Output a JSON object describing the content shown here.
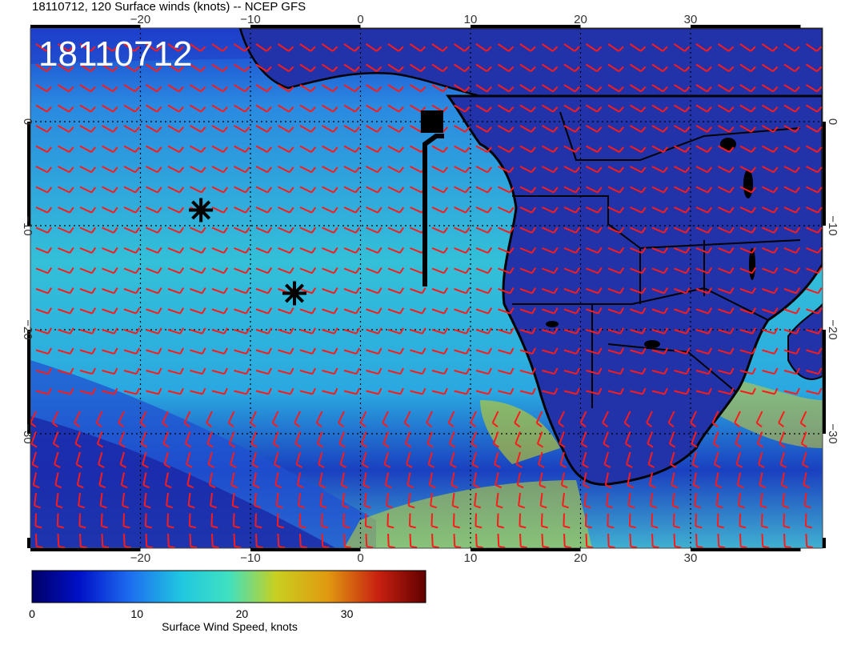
{
  "title": "18110712, 120 Surface winds (knots) -- NCEP GFS",
  "stamp": "18110712",
  "lon_ticks": [
    "-20",
    "-10",
    "0",
    "10",
    "20",
    "30"
  ],
  "lat_ticks": [
    "0",
    "-10",
    "-20",
    "-30"
  ],
  "colorbar": {
    "label": "Surface Wind Speed, knots",
    "ticks": [
      "0",
      "10",
      "20",
      "30"
    ],
    "range": [
      0,
      37.5
    ],
    "colors": [
      "#000066",
      "#0010c8",
      "#1e6ef0",
      "#1fc8e0",
      "#40e0c0",
      "#c8d020",
      "#e09a10",
      "#c82010",
      "#600000"
    ]
  },
  "map": {
    "lon_range": [
      -30,
      42
    ],
    "lat_range": [
      -41,
      9
    ],
    "barb_color": "#ff1a1a",
    "land_color": "#2233aa"
  },
  "markers": [
    {
      "type": "asterisk",
      "lon": -14.5,
      "lat": -8.5
    },
    {
      "type": "asterisk",
      "lon": -6,
      "lat": -16.5
    },
    {
      "type": "square",
      "lon": 6.5,
      "lat": 0
    }
  ]
}
